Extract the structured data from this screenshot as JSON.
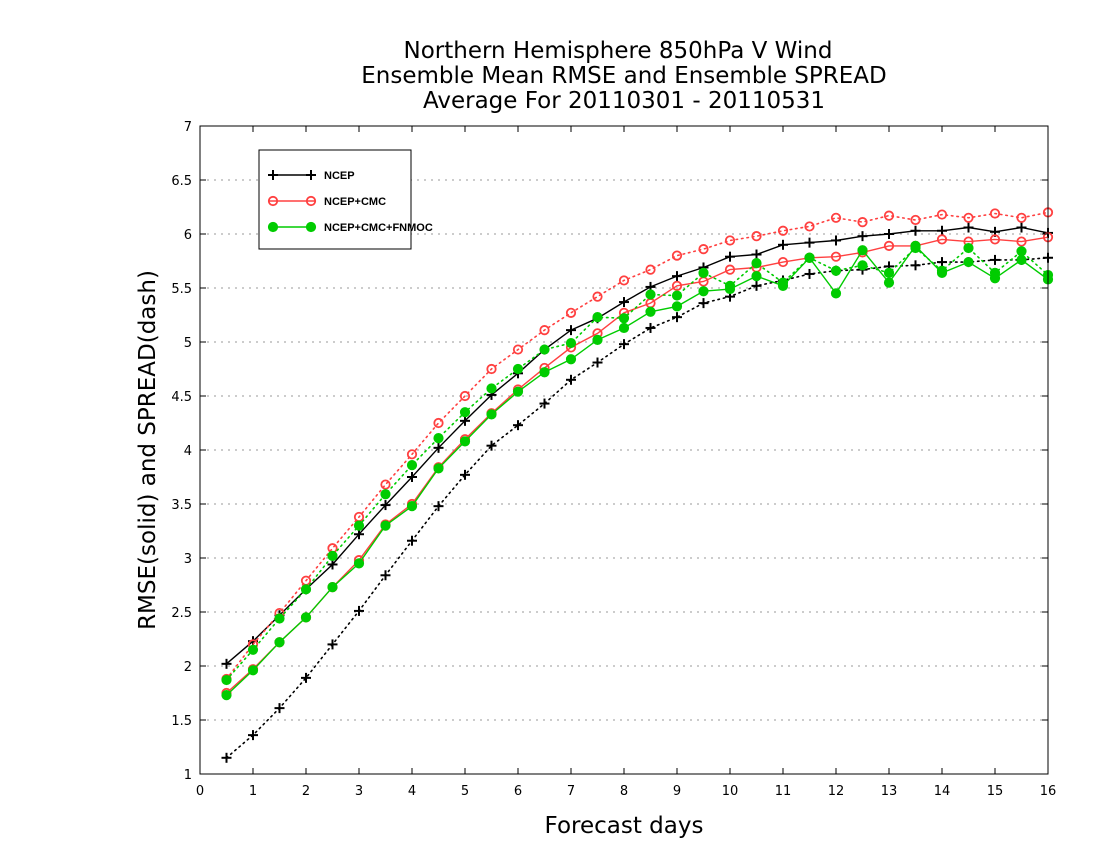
{
  "chart_data": {
    "type": "line",
    "title": [
      "Northern Hemisphere 850hPa V Wind",
      "Ensemble Mean RMSE and Ensemble SPREAD",
      "Average For 20110301 - 20110531"
    ],
    "xlabel": "Forecast days",
    "ylabel": "RMSE(solid) and SPREAD(dash)",
    "xlim": [
      0,
      16
    ],
    "ylim": [
      1,
      7
    ],
    "xticks": [
      "0",
      "1",
      "2",
      "3",
      "4",
      "5",
      "6",
      "7",
      "8",
      "9",
      "10",
      "11",
      "12",
      "13",
      "14",
      "15",
      "16"
    ],
    "yticks": [
      "1",
      "1.5",
      "2",
      "2.5",
      "3",
      "3.5",
      "4",
      "4.5",
      "5",
      "5.5",
      "6",
      "6.5",
      "7"
    ],
    "grid": true,
    "legend_position": "top-left",
    "x": [
      0.5,
      1,
      1.5,
      2,
      2.5,
      3,
      3.5,
      4,
      4.5,
      5,
      5.5,
      6,
      6.5,
      7,
      7.5,
      8,
      8.5,
      9,
      9.5,
      10,
      10.5,
      11,
      11.5,
      12,
      12.5,
      13,
      13.5,
      14,
      14.5,
      15,
      15.5,
      16
    ],
    "series": [
      {
        "name": "NCEP",
        "color": "#000000",
        "marker": "plus",
        "rmse": [
          2.02,
          2.23,
          2.47,
          2.71,
          2.94,
          3.22,
          3.49,
          3.75,
          4.02,
          4.27,
          4.51,
          4.71,
          4.93,
          5.11,
          5.22,
          5.37,
          5.51,
          5.61,
          5.69,
          5.79,
          5.81,
          5.9,
          5.92,
          5.94,
          5.98,
          6.0,
          6.03,
          6.03,
          6.06,
          6.02,
          6.06,
          6.01
        ],
        "spread": [
          1.15,
          1.36,
          1.61,
          1.89,
          2.2,
          2.51,
          2.84,
          3.16,
          3.48,
          3.77,
          4.04,
          4.23,
          4.43,
          4.65,
          4.81,
          4.98,
          5.13,
          5.23,
          5.36,
          5.42,
          5.52,
          5.57,
          5.63,
          5.66,
          5.67,
          5.7,
          5.71,
          5.74,
          5.74,
          5.76,
          5.76,
          5.78
        ]
      },
      {
        "name": "NCEP+CMC",
        "color": "#ff4040",
        "marker": "open-circle",
        "rmse": [
          1.75,
          1.97,
          2.22,
          2.45,
          2.73,
          2.98,
          3.31,
          3.5,
          3.84,
          4.1,
          4.34,
          4.56,
          4.76,
          4.95,
          5.08,
          5.27,
          5.36,
          5.52,
          5.56,
          5.67,
          5.69,
          5.74,
          5.78,
          5.79,
          5.83,
          5.89,
          5.89,
          5.95,
          5.93,
          5.95,
          5.93,
          5.97
        ],
        "spread": [
          1.88,
          2.2,
          2.49,
          2.79,
          3.09,
          3.38,
          3.68,
          3.96,
          4.25,
          4.5,
          4.75,
          4.93,
          5.11,
          5.27,
          5.42,
          5.57,
          5.67,
          5.8,
          5.86,
          5.94,
          5.98,
          6.03,
          6.07,
          6.15,
          6.11,
          6.17,
          6.13,
          6.18,
          6.15,
          6.19,
          6.15,
          6.2
        ]
      },
      {
        "name": "NCEP+CMC+FNMOC",
        "color": "#00cc00",
        "marker": "filled-circle",
        "rmse": [
          1.73,
          1.96,
          2.22,
          2.45,
          2.73,
          2.95,
          3.3,
          3.48,
          3.83,
          4.08,
          4.33,
          4.54,
          4.72,
          4.84,
          5.02,
          5.13,
          5.28,
          5.33,
          5.47,
          5.49,
          5.61,
          5.52,
          5.78,
          5.45,
          5.85,
          5.55,
          5.89,
          5.64,
          5.74,
          5.59,
          5.76,
          5.58
        ],
        "spread": [
          1.87,
          2.15,
          2.44,
          2.71,
          3.02,
          3.3,
          3.59,
          3.86,
          4.11,
          4.35,
          4.57,
          4.75,
          4.93,
          4.99,
          5.23,
          5.22,
          5.44,
          5.43,
          5.64,
          5.52,
          5.73,
          5.55,
          5.78,
          5.66,
          5.71,
          5.64,
          5.87,
          5.66,
          5.87,
          5.64,
          5.84,
          5.62
        ]
      }
    ]
  }
}
